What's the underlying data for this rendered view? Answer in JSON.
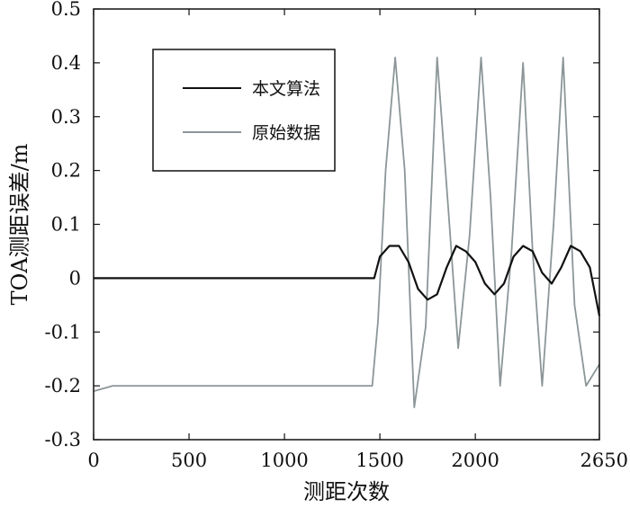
{
  "chart_data": {
    "type": "line",
    "xlabel": "测距次数",
    "ylabel": "TOA测距误差/m",
    "xlim": [
      0,
      2650
    ],
    "ylim": [
      -0.3,
      0.5
    ],
    "x_ticks": [
      0,
      500,
      1000,
      1500,
      2000,
      2650
    ],
    "x_tick_labels": [
      "0",
      "500",
      "1000",
      "1500",
      "2000",
      "2650"
    ],
    "y_ticks": [
      0.5,
      0.4,
      0.3,
      0.2,
      0.1,
      0,
      -0.1,
      -0.2,
      -0.3
    ],
    "y_tick_labels": [
      "0.5",
      "0.4",
      "0.3",
      "0.2",
      "0.1",
      "0",
      "-0.1",
      "-0.2",
      "-0.3"
    ],
    "grid": false,
    "legend_position": "top-left",
    "series": [
      {
        "name": "本文算法",
        "color": "#111111",
        "x": [
          0,
          100,
          200,
          300,
          400,
          500,
          600,
          700,
          800,
          900,
          1000,
          1100,
          1200,
          1300,
          1400,
          1470,
          1500,
          1550,
          1600,
          1650,
          1700,
          1750,
          1800,
          1850,
          1900,
          1950,
          2000,
          2050,
          2100,
          2150,
          2200,
          2250,
          2300,
          2350,
          2400,
          2450,
          2500,
          2550,
          2600,
          2650
        ],
        "values": [
          0.0,
          0.0,
          0.0,
          0.0,
          0.0,
          0.0,
          0.0,
          0.0,
          0.0,
          0.0,
          0.0,
          0.0,
          0.0,
          0.0,
          0.0,
          0.0,
          0.04,
          0.06,
          0.06,
          0.03,
          -0.02,
          -0.04,
          -0.03,
          0.02,
          0.06,
          0.05,
          0.03,
          -0.01,
          -0.03,
          -0.01,
          0.04,
          0.06,
          0.05,
          0.01,
          -0.01,
          0.02,
          0.06,
          0.05,
          0.02,
          -0.07
        ]
      },
      {
        "name": "原始数据",
        "color": "#8c9698",
        "x": [
          0,
          100,
          200,
          300,
          400,
          500,
          600,
          700,
          800,
          900,
          1000,
          1100,
          1200,
          1300,
          1400,
          1460,
          1490,
          1530,
          1580,
          1630,
          1680,
          1740,
          1800,
          1860,
          1910,
          1970,
          2030,
          2080,
          2130,
          2190,
          2250,
          2300,
          2350,
          2410,
          2460,
          2520,
          2580,
          2650
        ],
        "values": [
          -0.21,
          -0.2,
          -0.2,
          -0.2,
          -0.2,
          -0.2,
          -0.2,
          -0.2,
          -0.2,
          -0.2,
          -0.2,
          -0.2,
          -0.2,
          -0.2,
          -0.2,
          -0.2,
          -0.08,
          0.2,
          0.41,
          0.2,
          -0.24,
          -0.09,
          0.41,
          0.12,
          -0.13,
          0.08,
          0.41,
          0.15,
          -0.2,
          0.05,
          0.4,
          0.05,
          -0.2,
          0.1,
          0.41,
          -0.05,
          -0.2,
          -0.16
        ]
      }
    ]
  }
}
